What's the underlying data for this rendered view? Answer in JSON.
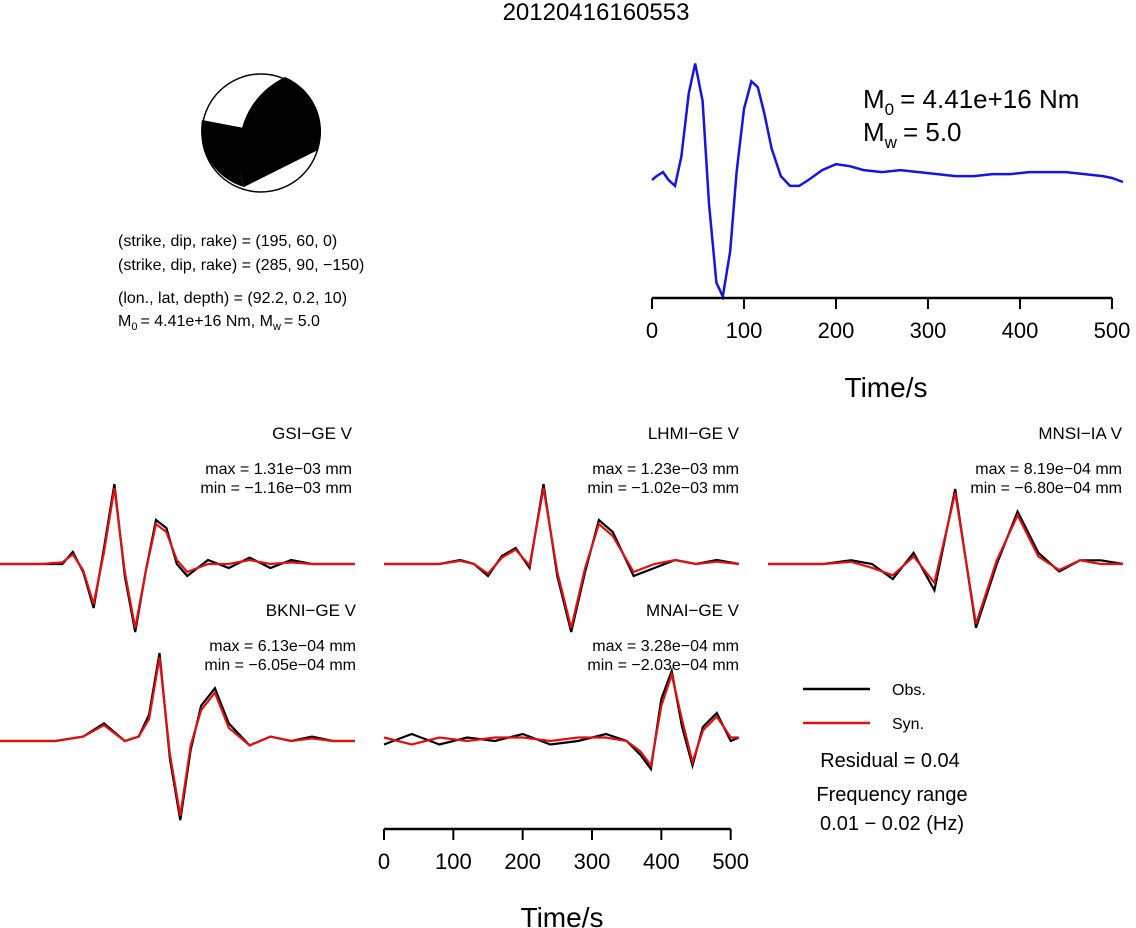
{
  "title": "20120416160553",
  "mechanism": {
    "line1": "(strike, dip, rake) = (195, 60, 0)",
    "line2": "(strike, dip, rake) = (285, 90, −150)",
    "line3": "(lon., lat, depth) = (92.2, 0.2, 10)",
    "line4_m0": "= 4.41e+16 Nm, M",
    "line4_mw": "= 5.0",
    "sym_m": "M",
    "sub_0": "0",
    "sub_w": "w"
  },
  "stf": {
    "m0_value": "= 4.41e+16 Nm",
    "mw_value": "= 5.0"
  },
  "legend": {
    "obs": "Obs.",
    "syn": "Syn.",
    "residual": "Residual = 0.04",
    "freq_title": "Frequency range",
    "freq_value": "0.01 − 0.02 (Hz)",
    "obs_color": "#000000",
    "syn_color": "#dd1111"
  },
  "chart_data": [
    {
      "type": "line",
      "name": "source-time-function",
      "xlabel": "Time/s",
      "xlim": [
        0,
        512
      ],
      "xticks": [
        "0",
        "100",
        "200",
        "300",
        "400",
        "500"
      ],
      "color": "#1515dd",
      "series": [
        {
          "x": [
            0,
            5,
            12,
            18,
            25,
            32,
            40,
            47,
            55,
            62,
            70,
            77,
            85,
            92,
            100,
            108,
            115,
            122,
            130,
            140,
            150,
            160,
            170,
            185,
            200,
            215,
            230,
            250,
            270,
            290,
            310,
            330,
            350,
            370,
            390,
            410,
            430,
            450,
            470,
            490,
            500,
            512
          ],
          "values": [
            0.0,
            0.1,
            0.2,
            0.0,
            -0.15,
            0.6,
            2.2,
            2.95,
            2.0,
            -0.6,
            -2.6,
            -2.95,
            -1.8,
            0.2,
            1.8,
            2.5,
            2.35,
            1.7,
            0.8,
            0.1,
            -0.15,
            -0.15,
            0.0,
            0.25,
            0.4,
            0.35,
            0.25,
            0.2,
            0.25,
            0.2,
            0.15,
            0.1,
            0.1,
            0.15,
            0.15,
            0.2,
            0.2,
            0.2,
            0.15,
            0.1,
            0.05,
            -0.05
          ]
        }
      ]
    },
    {
      "type": "line",
      "name": "waveform-comparison",
      "xlabel": "Time/s",
      "xlim": [
        0,
        512
      ],
      "xticks": [
        "0",
        "100",
        "200",
        "300",
        "400",
        "500"
      ],
      "stations": [
        {
          "label": "GSI−GE V",
          "max": "max = 1.31e−03 mm",
          "min": "min = −1.16e−03 mm",
          "x": [
            0,
            60,
            90,
            105,
            120,
            135,
            150,
            165,
            180,
            195,
            210,
            225,
            240,
            255,
            270,
            285,
            300,
            330,
            360,
            390,
            420,
            450,
            480,
            512
          ],
          "obs": [
            0.0,
            0.0,
            0.0,
            0.15,
            -0.1,
            -0.55,
            0.2,
            1.0,
            -0.15,
            -0.85,
            -0.1,
            0.55,
            0.45,
            0.0,
            -0.15,
            -0.05,
            0.05,
            -0.05,
            0.08,
            -0.05,
            0.05,
            0.0,
            0.0,
            0.0
          ],
          "syn": [
            0.0,
            0.0,
            0.02,
            0.12,
            -0.08,
            -0.5,
            0.15,
            0.95,
            -0.1,
            -0.8,
            -0.1,
            0.5,
            0.4,
            0.05,
            -0.1,
            -0.05,
            0.0,
            0.0,
            0.05,
            0.0,
            0.02,
            0.0,
            0.0,
            0.0
          ]
        },
        {
          "label": "LHMI−GE V",
          "max": "max = 1.23e−03 mm",
          "min": "min = −1.02e−03 mm",
          "x": [
            0,
            80,
            110,
            130,
            150,
            170,
            190,
            210,
            230,
            250,
            270,
            290,
            310,
            330,
            360,
            390,
            420,
            450,
            480,
            512
          ],
          "obs": [
            0.0,
            0.0,
            0.05,
            0.0,
            -0.15,
            0.1,
            0.2,
            -0.05,
            1.0,
            -0.15,
            -0.85,
            -0.1,
            0.55,
            0.4,
            -0.15,
            -0.05,
            0.05,
            0.0,
            0.05,
            0.0
          ],
          "syn": [
            0.0,
            0.0,
            0.04,
            0.0,
            -0.12,
            0.08,
            0.18,
            -0.02,
            0.95,
            -0.1,
            -0.8,
            -0.05,
            0.5,
            0.35,
            -0.1,
            0.0,
            0.05,
            0.0,
            0.03,
            0.0
          ]
        },
        {
          "label": "MNSI−IA V",
          "max": "max = 8.19e−04 mm",
          "min": "min = −6.80e−04 mm",
          "x": [
            0,
            80,
            120,
            150,
            180,
            210,
            240,
            270,
            300,
            330,
            360,
            390,
            420,
            450,
            480,
            512
          ],
          "obs": [
            0.0,
            0.0,
            0.05,
            0.0,
            -0.2,
            0.15,
            -0.35,
            1.0,
            -0.85,
            0.0,
            0.7,
            0.15,
            -0.1,
            0.05,
            0.05,
            0.0
          ],
          "syn": [
            0.0,
            0.0,
            0.03,
            -0.05,
            -0.15,
            0.1,
            -0.25,
            0.95,
            -0.8,
            0.05,
            0.65,
            0.1,
            -0.08,
            0.05,
            0.0,
            0.0
          ]
        },
        {
          "label": "BKNI−GE V",
          "max": "max = 6.13e−04 mm",
          "min": "min = −6.05e−04 mm",
          "x": [
            0,
            80,
            120,
            150,
            180,
            200,
            215,
            230,
            245,
            260,
            275,
            290,
            310,
            330,
            360,
            390,
            420,
            450,
            480,
            512
          ],
          "obs": [
            0.0,
            0.0,
            0.05,
            0.2,
            0.0,
            0.05,
            0.3,
            1.0,
            -0.2,
            -0.9,
            -0.1,
            0.4,
            0.6,
            0.2,
            -0.05,
            0.05,
            0.0,
            0.05,
            0.0,
            0.0
          ],
          "syn": [
            0.0,
            0.0,
            0.05,
            0.18,
            0.0,
            0.05,
            0.25,
            0.95,
            -0.15,
            -0.85,
            -0.05,
            0.35,
            0.55,
            0.15,
            -0.05,
            0.05,
            0.0,
            0.03,
            0.0,
            0.0
          ]
        },
        {
          "label": "MNAI−GE V",
          "max": "max = 3.28e−04 mm",
          "min": "min = −2.03e−04 mm",
          "x": [
            0,
            40,
            80,
            120,
            160,
            200,
            240,
            280,
            320,
            350,
            370,
            385,
            400,
            415,
            430,
            445,
            460,
            480,
            500,
            512
          ],
          "obs": [
            -0.05,
            0.1,
            -0.05,
            0.05,
            0.0,
            0.1,
            -0.05,
            0.0,
            0.1,
            0.0,
            -0.2,
            -0.4,
            0.6,
            1.0,
            0.2,
            -0.35,
            0.2,
            0.4,
            0.0,
            0.05
          ],
          "syn": [
            0.05,
            -0.05,
            0.05,
            0.0,
            0.05,
            0.05,
            0.0,
            0.05,
            0.05,
            0.0,
            -0.15,
            -0.35,
            0.5,
            0.95,
            0.3,
            -0.3,
            0.15,
            0.35,
            0.05,
            0.05
          ]
        }
      ]
    }
  ]
}
